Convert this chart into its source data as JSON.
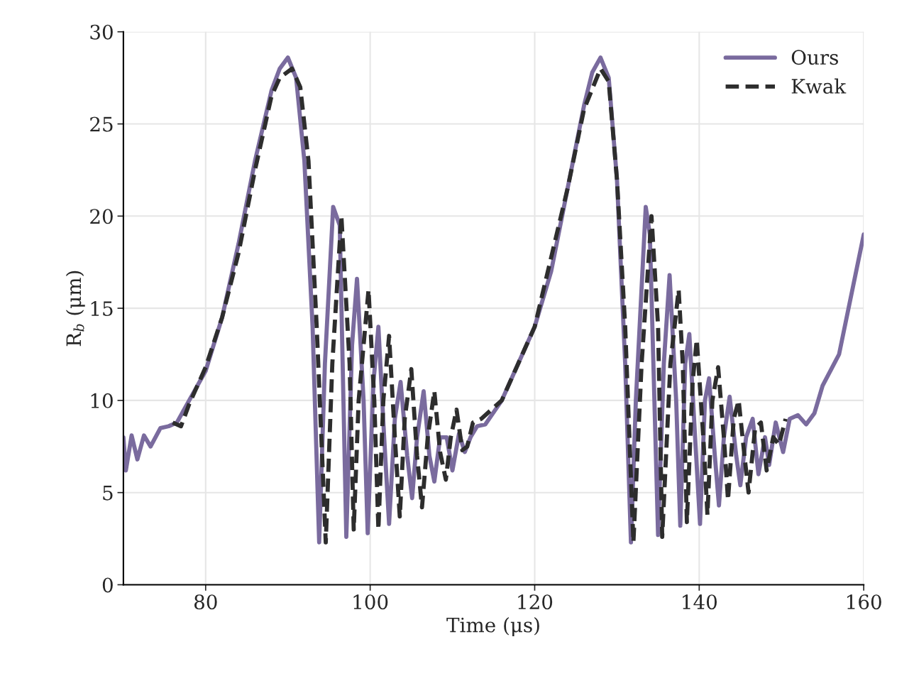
{
  "chart_data": {
    "type": "line",
    "xlabel": "Time (μs)",
    "ylabel": "R$_{b}$ (μm)",
    "xlim": [
      70,
      160
    ],
    "xticks": [
      80,
      100,
      120,
      140,
      160
    ],
    "ylim": [
      0,
      30
    ],
    "yticks": [
      0,
      5,
      10,
      15,
      20,
      25,
      30
    ],
    "grid": true,
    "legend": "top right",
    "series": [
      {
        "name": "Ours",
        "color": "#7a6b9e",
        "line_style": "solid",
        "x": [
          70,
          70.3,
          71,
          71.7,
          72.5,
          73.3,
          74.5,
          75.5,
          76.5,
          78,
          80,
          82,
          84,
          86,
          88,
          89,
          90,
          91,
          92,
          93,
          93.8,
          94.5,
          95.5,
          96.3,
          97.1,
          97.8,
          98.4,
          99.2,
          99.7,
          100.4,
          101,
          101.7,
          102.3,
          103,
          103.7,
          104.5,
          105.1,
          105.7,
          106.5,
          107.2,
          107.8,
          108.5,
          109.3,
          110,
          110.8,
          111.5,
          112.2,
          113,
          114,
          116,
          118,
          120,
          122,
          124,
          126,
          127,
          128,
          129,
          130,
          131,
          131.7,
          132.3,
          133.5,
          134,
          135,
          135.7,
          136.4,
          137.2,
          137.7,
          138.3,
          138.8,
          139.5,
          140.1,
          140.7,
          141.2,
          141.9,
          142.4,
          143,
          143.7,
          144.5,
          145,
          145.7,
          146.5,
          147.2,
          148,
          148.5,
          149.3,
          150.2,
          151,
          152,
          153,
          154,
          155,
          157,
          160
        ],
        "values": [
          8.0,
          6.2,
          8.1,
          6.8,
          8.1,
          7.5,
          8.5,
          8.6,
          8.8,
          10,
          11.6,
          14.5,
          18.5,
          23,
          26.8,
          28,
          28.6,
          27.5,
          23,
          14,
          2.3,
          12,
          20.5,
          19.5,
          2.6,
          13,
          16.6,
          10,
          2.8,
          11,
          14,
          8,
          3.3,
          9,
          11,
          7,
          4.7,
          8,
          10.5,
          7,
          5.6,
          8,
          8,
          6.2,
          8.2,
          7.2,
          8,
          8.6,
          8.7,
          10,
          12,
          14,
          17,
          21.5,
          26,
          27.8,
          28.6,
          27.5,
          22,
          12,
          2.3,
          10,
          20.5,
          19,
          2.7,
          12,
          16.8,
          10,
          3.2,
          12,
          13.6,
          8,
          3.3,
          10,
          11.2,
          7,
          4.3,
          8,
          10.2,
          7,
          5.4,
          8,
          9,
          6,
          8,
          6.5,
          8.8,
          7.2,
          9,
          9.2,
          8.7,
          9.3,
          10.8,
          12.5,
          19
        ]
      },
      {
        "name": "Kwak",
        "color": "#2d2d2d",
        "line_style": "dashed",
        "x": [
          76,
          77,
          78,
          80,
          82,
          84,
          86,
          88,
          89,
          90.5,
          91.5,
          92.5,
          93.5,
          94.6,
          95.4,
          96.5,
          97.5,
          98,
          98.6,
          99.8,
          100.5,
          101,
          101.6,
          102.3,
          103,
          103.6,
          104.2,
          105,
          105.7,
          106.3,
          107,
          107.8,
          108.5,
          109.2,
          109.8,
          110.5,
          111.2,
          111.8,
          112.5,
          113.5,
          116,
          120,
          124,
          126,
          128,
          129,
          130,
          131,
          132,
          133,
          134.2,
          135,
          135.5,
          136.5,
          137.5,
          138,
          138.5,
          139.2,
          139.7,
          140.5,
          141,
          141.6,
          142.3,
          143,
          143.5,
          144.2,
          144.8,
          145.5,
          146,
          146.8,
          147.5,
          148.2,
          149,
          149.7,
          150.5
        ],
        "values": [
          8.8,
          8.6,
          9.8,
          11.8,
          14.5,
          18,
          22.5,
          26.5,
          27.5,
          28,
          27,
          23,
          14,
          2.3,
          12,
          20,
          12,
          3,
          10,
          16,
          10,
          3,
          10,
          13.5,
          8,
          3.7,
          9,
          11.7,
          7,
          4.2,
          8,
          10.5,
          7.2,
          5.7,
          8,
          9.5,
          7.3,
          7.5,
          8.8,
          9,
          10,
          14,
          21.5,
          25.8,
          28,
          27.3,
          22,
          14,
          2.3,
          12,
          20,
          14,
          2.6,
          12,
          16,
          12,
          3.4,
          11,
          13.3,
          8,
          3.8,
          10,
          11.8,
          8,
          4.6,
          9,
          10,
          7,
          5,
          8.5,
          8.8,
          6.2,
          8,
          7.6,
          9
        ]
      }
    ]
  }
}
